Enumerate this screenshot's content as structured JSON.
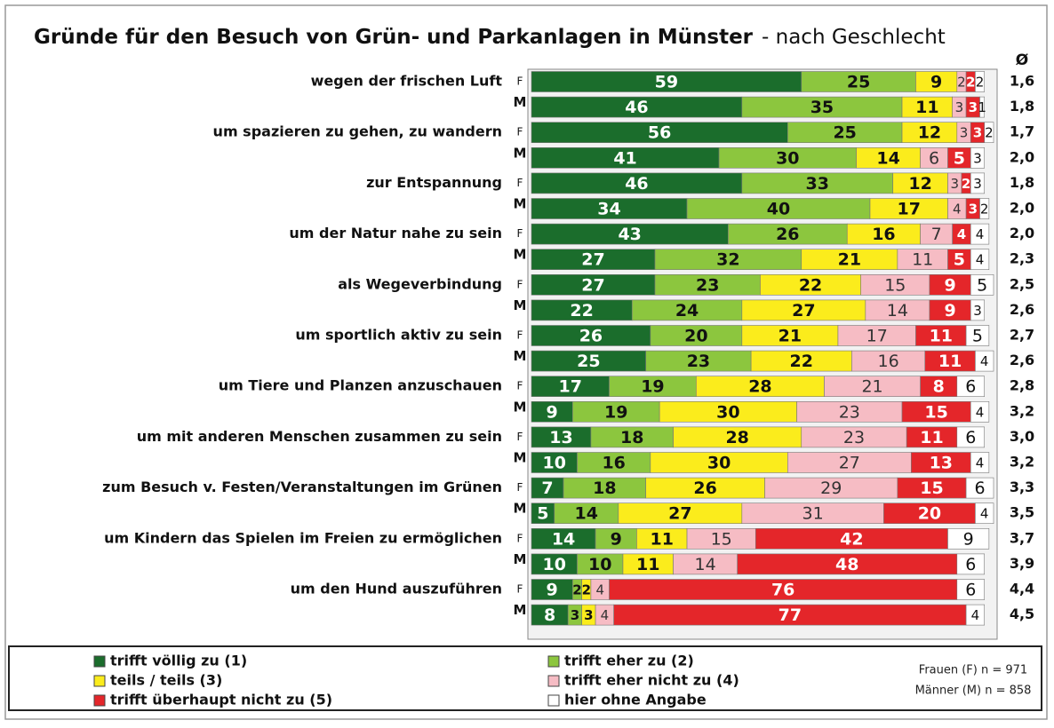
{
  "chart_data": {
    "type": "stacked-bar-horizontal",
    "title": "Gründe für den Besuch von Grün- und Parkanlagen in Münster",
    "subtitle": "- nach Geschlecht",
    "groups": [
      "wegen der frischen Luft",
      "um spazieren zu gehen, zu wandern",
      "zur Entspannung",
      "um der Natur nahe zu sein",
      "als Wegeverbindung",
      "um sportlich aktiv zu sein",
      "um Tiere und Planzen anzuschauen",
      "um mit anderen Menschen zusammen zu sein",
      "zum Besuch v. Festen/Veranstaltungen im Grünen",
      "um Kindern das Spielen im Freien zu ermöglichen",
      "um den Hund auszuführen"
    ],
    "categories": [
      "F",
      "M",
      "F",
      "M",
      "F",
      "M",
      "F",
      "M",
      "F",
      "M",
      "F",
      "M",
      "F",
      "M",
      "F",
      "M",
      "F",
      "M",
      "F",
      "M",
      "F",
      "M"
    ],
    "xlim": [
      0,
      101
    ],
    "series": [
      {
        "name": "trifft völlig zu (1)",
        "color": "#1b6d2c",
        "label_color": "#ffffff",
        "values": [
          59,
          46,
          56,
          41,
          46,
          34,
          43,
          27,
          27,
          22,
          26,
          25,
          17,
          9,
          13,
          10,
          7,
          5,
          14,
          10,
          9,
          8
        ]
      },
      {
        "name": "trifft eher zu (2)",
        "color": "#8cc63e",
        "label_color": "#111111",
        "values": [
          25,
          35,
          25,
          30,
          33,
          40,
          26,
          32,
          23,
          24,
          20,
          23,
          19,
          19,
          18,
          16,
          18,
          14,
          9,
          10,
          2,
          3
        ]
      },
      {
        "name": "teils / teils (3)",
        "color": "#fbec1c",
        "label_color": "#111111",
        "values": [
          9,
          11,
          12,
          14,
          12,
          17,
          16,
          21,
          22,
          27,
          21,
          22,
          28,
          30,
          28,
          30,
          26,
          27,
          11,
          11,
          2,
          3
        ]
      },
      {
        "name": "trifft eher nicht zu (4)",
        "color": "#f6bcc4",
        "label_color": "#333333",
        "values": [
          2,
          3,
          3,
          6,
          3,
          4,
          7,
          11,
          15,
          14,
          17,
          16,
          21,
          23,
          23,
          27,
          29,
          31,
          15,
          14,
          4,
          4
        ]
      },
      {
        "name": "trifft überhaupt nicht zu (5)",
        "color": "#e4262a",
        "label_color": "#ffffff",
        "values": [
          2,
          3,
          3,
          5,
          2,
          3,
          4,
          5,
          9,
          9,
          11,
          11,
          8,
          15,
          11,
          13,
          15,
          20,
          42,
          48,
          76,
          77
        ]
      },
      {
        "name": "hier ohne Angabe",
        "color": "#ffffff",
        "label_color": "#111111",
        "values": [
          2,
          1,
          2,
          3,
          3,
          2,
          4,
          4,
          5,
          3,
          5,
          4,
          6,
          4,
          6,
          4,
          6,
          4,
          9,
          6,
          6,
          4
        ]
      }
    ],
    "averages": {
      "name": "Ø",
      "values": [
        1.6,
        1.8,
        1.7,
        2.0,
        1.8,
        2.0,
        2.0,
        2.3,
        2.5,
        2.6,
        2.7,
        2.6,
        2.8,
        3.2,
        3.0,
        3.2,
        3.3,
        3.5,
        3.7,
        3.9,
        4.4,
        4.5
      ],
      "value_labels": [
        "1,6",
        "1,8",
        "1,7",
        "2,0",
        "1,8",
        "2,0",
        "2,0",
        "2,3",
        "2,5",
        "2,6",
        "2,7",
        "2,6",
        "2,8",
        "3,2",
        "3,0",
        "3,2",
        "3,3",
        "3,5",
        "3,7",
        "3,9",
        "4,4",
        "4,5"
      ]
    },
    "notes": [
      "Frauen (F) n = 971",
      "Männer (M) n = 858"
    ]
  }
}
